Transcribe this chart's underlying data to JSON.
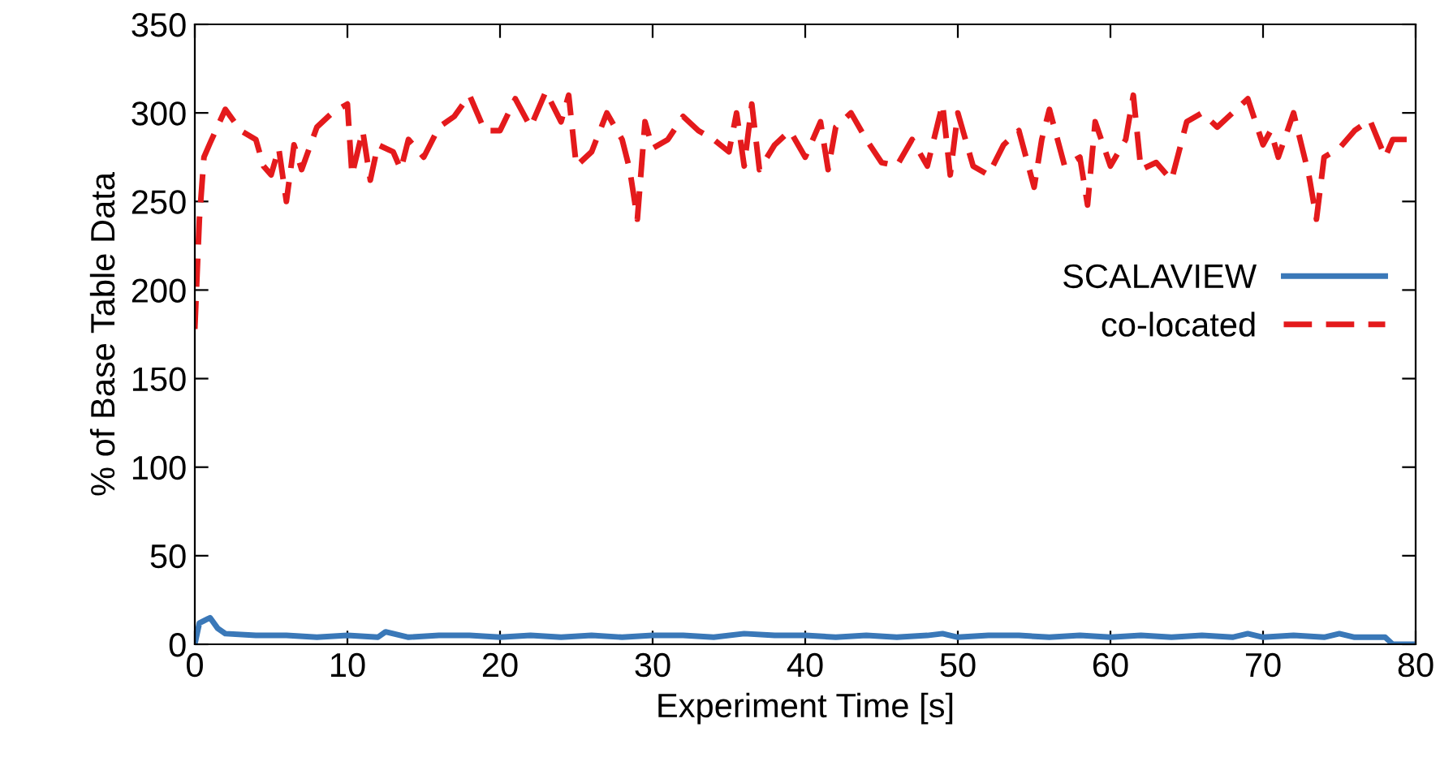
{
  "chart_data": {
    "type": "line",
    "xlabel": "Experiment Time [s]",
    "ylabel": "% of Base Table Data",
    "xlim": [
      0,
      80
    ],
    "ylim": [
      0,
      350
    ],
    "xticks": [
      0,
      10,
      20,
      30,
      40,
      50,
      60,
      70,
      80
    ],
    "yticks": [
      0,
      50,
      100,
      150,
      200,
      250,
      300,
      350
    ],
    "grid": false,
    "legend": "right",
    "marker": "none",
    "series": [
      {
        "name": "SCALAVIEW",
        "color": "#3a78b8",
        "line_style": "solid",
        "x": [
          0,
          0.3,
          1,
          1.5,
          2,
          4,
          6,
          8,
          10,
          12,
          12.5,
          14,
          16,
          18,
          20,
          22,
          24,
          26,
          28,
          30,
          32,
          34,
          36,
          38,
          40,
          42,
          44,
          46,
          48,
          49,
          50,
          52,
          54,
          56,
          58,
          60,
          62,
          64,
          66,
          68,
          69,
          70,
          72,
          74,
          75,
          76,
          78,
          78.5,
          80
        ],
        "values": [
          0,
          12,
          15,
          9,
          6,
          5,
          5,
          4,
          5,
          4,
          7,
          4,
          5,
          5,
          4,
          5,
          4,
          5,
          4,
          5,
          5,
          4,
          6,
          5,
          5,
          4,
          5,
          4,
          5,
          6,
          4,
          5,
          5,
          4,
          5,
          4,
          5,
          4,
          5,
          4,
          6,
          4,
          5,
          4,
          6,
          4,
          4,
          0,
          0
        ]
      },
      {
        "name": "co-located",
        "color": "#e41a1c",
        "line_style": "dashed",
        "x": [
          0,
          0.3,
          0.6,
          1,
          2,
          3,
          4,
          4.5,
          5,
          5.5,
          6,
          6.5,
          7,
          7.5,
          8,
          9,
          10,
          10.3,
          11,
          11.5,
          12,
          13,
          13.5,
          14,
          15,
          16,
          17,
          18,
          19,
          20,
          21,
          22,
          23,
          24,
          24.5,
          25,
          26,
          27,
          28,
          28.5,
          29,
          29.5,
          30,
          31,
          32,
          33,
          34,
          35,
          35.5,
          36,
          36.5,
          37,
          38,
          39,
          40,
          41,
          41.5,
          42,
          43,
          44,
          45,
          46,
          47,
          48,
          49,
          49.5,
          50,
          51,
          52,
          53,
          54,
          55,
          55.5,
          56,
          57,
          58,
          58.5,
          59,
          60,
          61,
          61.5,
          62,
          63,
          64,
          65,
          66,
          67,
          68,
          69,
          70,
          70.5,
          71,
          72,
          73,
          73.5,
          74,
          75,
          76,
          77,
          78,
          78.5,
          80
        ],
        "values": [
          178,
          240,
          275,
          283,
          302,
          290,
          285,
          270,
          265,
          280,
          250,
          282,
          268,
          280,
          292,
          300,
          305,
          265,
          290,
          262,
          282,
          278,
          268,
          285,
          275,
          292,
          298,
          310,
          290,
          290,
          308,
          292,
          312,
          295,
          310,
          270,
          278,
          300,
          285,
          268,
          240,
          295,
          280,
          285,
          298,
          290,
          285,
          278,
          300,
          270,
          305,
          268,
          282,
          290,
          275,
          295,
          268,
          292,
          300,
          285,
          272,
          270,
          285,
          270,
          305,
          265,
          300,
          270,
          265,
          282,
          290,
          258,
          285,
          302,
          270,
          275,
          248,
          295,
          270,
          285,
          310,
          268,
          272,
          262,
          295,
          300,
          292,
          300,
          308,
          282,
          290,
          275,
          300,
          265,
          240,
          275,
          280,
          290,
          296,
          275,
          285,
          285
        ]
      }
    ]
  }
}
